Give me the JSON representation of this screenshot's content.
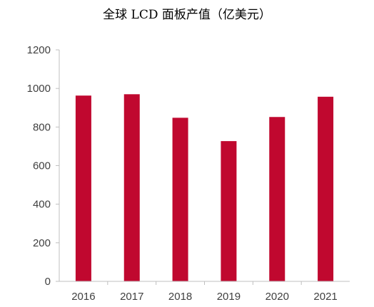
{
  "chart_data": {
    "type": "bar",
    "title": "全球 LCD 面板产值（亿美元）",
    "categories": [
      "2016",
      "2017",
      "2018",
      "2019",
      "2020",
      "2021"
    ],
    "values": [
      963,
      970,
      848,
      727,
      852,
      957
    ],
    "ylim": [
      0,
      1200
    ],
    "yticks": [
      "0",
      "200",
      "400",
      "600",
      "800",
      "1000",
      "1200"
    ],
    "xlabel": "",
    "ylabel": "",
    "grid": false,
    "bar_color": "#C0082F"
  }
}
